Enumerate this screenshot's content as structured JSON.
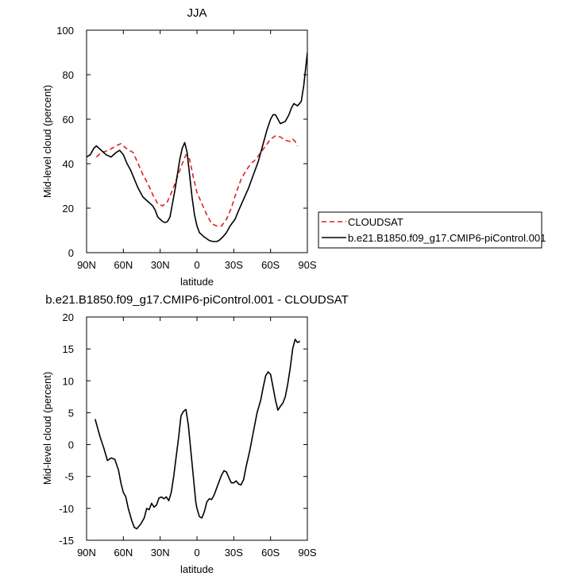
{
  "chart_data": [
    {
      "type": "line",
      "title": "JJA",
      "xlabel": "latitude",
      "ylabel": "Mid-level cloud (percent)",
      "xlim": [
        90,
        -90
      ],
      "ylim": [
        0,
        100
      ],
      "x_ticks": [
        90,
        60,
        30,
        0,
        -30,
        -60,
        -90
      ],
      "x_tick_labels": [
        "90N",
        "60N",
        "30N",
        "0",
        "30S",
        "60S",
        "90S"
      ],
      "y_ticks": [
        0,
        20,
        40,
        60,
        80,
        100
      ],
      "y_tick_labels": [
        "0",
        "20",
        "40",
        "60",
        "80",
        "100"
      ],
      "legend_position": "right",
      "series": [
        {
          "name": "CLOUDSAT",
          "color": "#e02020",
          "dash": "dashed",
          "points": [
            [
              82,
              43
            ],
            [
              78,
              45
            ],
            [
              72,
              46
            ],
            [
              66,
              48
            ],
            [
              62,
              49
            ],
            [
              58,
              47
            ],
            [
              52,
              45
            ],
            [
              48,
              40
            ],
            [
              44,
              35
            ],
            [
              40,
              31
            ],
            [
              36,
              26
            ],
            [
              32,
              22
            ],
            [
              28,
              21
            ],
            [
              24,
              23
            ],
            [
              20,
              28
            ],
            [
              16,
              34
            ],
            [
              12,
              40
            ],
            [
              9,
              44
            ],
            [
              6,
              42
            ],
            [
              3,
              34
            ],
            [
              0,
              27
            ],
            [
              -4,
              22
            ],
            [
              -8,
              17
            ],
            [
              -12,
              13
            ],
            [
              -16,
              12
            ],
            [
              -20,
              12
            ],
            [
              -24,
              15
            ],
            [
              -28,
              20
            ],
            [
              -32,
              27
            ],
            [
              -36,
              33
            ],
            [
              -40,
              37
            ],
            [
              -44,
              40
            ],
            [
              -48,
              42
            ],
            [
              -52,
              45
            ],
            [
              -56,
              48
            ],
            [
              -60,
              51
            ],
            [
              -64,
              52.5
            ],
            [
              -68,
              52
            ],
            [
              -72,
              50.5
            ],
            [
              -76,
              50
            ],
            [
              -78,
              51
            ],
            [
              -80,
              50
            ],
            [
              -82,
              48
            ]
          ]
        },
        {
          "name": "b.e21.B1850.f09_g17.CMIP6-piControl.001",
          "color": "#000000",
          "dash": "solid",
          "points": [
            [
              90,
              43
            ],
            [
              87,
              44
            ],
            [
              84,
              47
            ],
            [
              82,
              48
            ],
            [
              78,
              46
            ],
            [
              74,
              44
            ],
            [
              70,
              43
            ],
            [
              66,
              45
            ],
            [
              63,
              46
            ],
            [
              60,
              44
            ],
            [
              57,
              40
            ],
            [
              54,
              37
            ],
            [
              51,
              33
            ],
            [
              48,
              29
            ],
            [
              44,
              25
            ],
            [
              40,
              23
            ],
            [
              36,
              21
            ],
            [
              34,
              19
            ],
            [
              32,
              16
            ],
            [
              30,
              15
            ],
            [
              28,
              14
            ],
            [
              26,
              13.5
            ],
            [
              24,
              14
            ],
            [
              22,
              16
            ],
            [
              20,
              22
            ],
            [
              18,
              28
            ],
            [
              16,
              35
            ],
            [
              14,
              42
            ],
            [
              12,
              47
            ],
            [
              10,
              49.5
            ],
            [
              8,
              45
            ],
            [
              6,
              35
            ],
            [
              4,
              25
            ],
            [
              2,
              17
            ],
            [
              0,
              12
            ],
            [
              -2,
              9
            ],
            [
              -6,
              7
            ],
            [
              -10,
              5.5
            ],
            [
              -13,
              5
            ],
            [
              -16,
              5
            ],
            [
              -18,
              5.5
            ],
            [
              -21,
              7
            ],
            [
              -24,
              9
            ],
            [
              -27,
              12
            ],
            [
              -31,
              15
            ],
            [
              -34,
              19
            ],
            [
              -38,
              24
            ],
            [
              -42,
              29
            ],
            [
              -46,
              35
            ],
            [
              -50,
              41
            ],
            [
              -54,
              49
            ],
            [
              -57,
              55
            ],
            [
              -60,
              60
            ],
            [
              -62,
              62
            ],
            [
              -64,
              62
            ],
            [
              -66,
              60
            ],
            [
              -68,
              58
            ],
            [
              -72,
              59
            ],
            [
              -75,
              62
            ],
            [
              -77,
              65
            ],
            [
              -79,
              67
            ],
            [
              -82,
              66
            ],
            [
              -85,
              68
            ],
            [
              -87,
              75
            ],
            [
              -89,
              85
            ],
            [
              -90,
              90
            ]
          ]
        }
      ]
    },
    {
      "type": "line",
      "title": "b.e21.B1850.f09_g17.CMIP6-piControl.001 - CLOUDSAT",
      "xlabel": "latitude",
      "ylabel": "Mid-level cloud (percent)",
      "xlim": [
        90,
        -90
      ],
      "ylim": [
        -15,
        20
      ],
      "x_ticks": [
        90,
        60,
        30,
        0,
        -30,
        -60,
        -90
      ],
      "x_tick_labels": [
        "90N",
        "60N",
        "30N",
        "0",
        "30S",
        "60S",
        "90S"
      ],
      "y_ticks": [
        -15,
        -10,
        -5,
        0,
        5,
        10,
        15,
        20
      ],
      "y_tick_labels": [
        "-15",
        "-10",
        "-5",
        "0",
        "5",
        "10",
        "15",
        "20"
      ],
      "series": [
        {
          "color": "#000000",
          "dash": "solid",
          "points": [
            [
              83,
              4
            ],
            [
              79,
              1.2
            ],
            [
              76,
              -0.5
            ],
            [
              73,
              -2.5
            ],
            [
              70,
              -2.1
            ],
            [
              67,
              -2.3
            ],
            [
              64,
              -4
            ],
            [
              62,
              -6
            ],
            [
              60,
              -7.5
            ],
            [
              58,
              -8.2
            ],
            [
              56,
              -10
            ],
            [
              53,
              -12
            ],
            [
              51,
              -13
            ],
            [
              49,
              -13.2
            ],
            [
              46,
              -12.5
            ],
            [
              43,
              -11.5
            ],
            [
              41,
              -10
            ],
            [
              39,
              -10.2
            ],
            [
              37,
              -9.2
            ],
            [
              35,
              -9.8
            ],
            [
              33,
              -9.5
            ],
            [
              31,
              -8.4
            ],
            [
              29,
              -8.2
            ],
            [
              27,
              -8.5
            ],
            [
              25,
              -8.2
            ],
            [
              23,
              -8.8
            ],
            [
              21,
              -7.5
            ],
            [
              19,
              -5
            ],
            [
              17,
              -2
            ],
            [
              15,
              1
            ],
            [
              13,
              4.5
            ],
            [
              11,
              5.2
            ],
            [
              9,
              5.5
            ],
            [
              7,
              3
            ],
            [
              5,
              -1
            ],
            [
              3,
              -5
            ],
            [
              1,
              -9
            ],
            [
              0,
              -10
            ],
            [
              -2,
              -11.3
            ],
            [
              -4,
              -11.5
            ],
            [
              -6,
              -10.5
            ],
            [
              -8,
              -9
            ],
            [
              -10,
              -8.5
            ],
            [
              -12,
              -8.6
            ],
            [
              -14,
              -7.9
            ],
            [
              -17,
              -6.3
            ],
            [
              -20,
              -4.8
            ],
            [
              -22,
              -4.1
            ],
            [
              -24,
              -4.3
            ],
            [
              -26,
              -5.2
            ],
            [
              -28,
              -6
            ],
            [
              -30,
              -6
            ],
            [
              -32,
              -5.7
            ],
            [
              -34,
              -6.2
            ],
            [
              -36,
              -6.3
            ],
            [
              -38,
              -5.5
            ],
            [
              -40,
              -3.5
            ],
            [
              -43,
              -1
            ],
            [
              -46,
              2
            ],
            [
              -49,
              5
            ],
            [
              -52,
              7
            ],
            [
              -54,
              9
            ],
            [
              -56,
              10.8
            ],
            [
              -58,
              11.4
            ],
            [
              -60,
              11
            ],
            [
              -62,
              9
            ],
            [
              -64,
              7
            ],
            [
              -66,
              5.4
            ],
            [
              -68,
              6
            ],
            [
              -70,
              6.5
            ],
            [
              -72,
              7.5
            ],
            [
              -74,
              9.5
            ],
            [
              -76,
              12
            ],
            [
              -78,
              15
            ],
            [
              -80,
              16.5
            ],
            [
              -82,
              16
            ],
            [
              -84,
              16.2
            ]
          ]
        }
      ]
    }
  ]
}
